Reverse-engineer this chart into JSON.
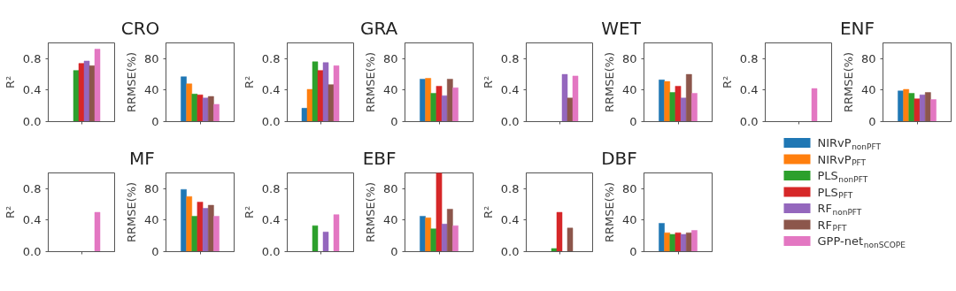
{
  "chart_data": [
    {
      "type": "bar",
      "ylabel": "R²",
      "categories": [
        null
      ],
      "ylim": [
        0,
        1
      ],
      "yticks": [
        {
          "value": 0,
          "label": "0.0"
        },
        {
          "value": 0.4,
          "label": "0.4"
        },
        {
          "value": 0.8,
          "label": "0.8"
        }
      ],
      "tick_labels": "y",
      "grid": false,
      "series": [
        {
          "color": "#1f77b4",
          "values": [
            null
          ]
        },
        {
          "color": "#ff7f0e",
          "values": [
            null
          ]
        },
        {
          "color": "#2ca02c",
          "values": [
            0.65
          ]
        },
        {
          "color": "#d62728",
          "values": [
            0.74
          ]
        },
        {
          "color": "#9467bd",
          "values": [
            0.77
          ]
        },
        {
          "color": "#8c564b",
          "values": [
            0.71
          ]
        },
        {
          "color": "#e377c2",
          "values": [
            0.92
          ]
        }
      ]
    },
    {
      "type": "bar",
      "ylabel": "RRMSE(%)",
      "categories": [
        null
      ],
      "ylim": [
        0,
        100
      ],
      "yticks": [
        0,
        40,
        80
      ],
      "tick_labels": "y",
      "grid": false,
      "title": "CRO",
      "series": [
        {
          "color": "#1f77b4",
          "values": [
            57
          ]
        },
        {
          "color": "#ff7f0e",
          "values": [
            48
          ]
        },
        {
          "color": "#2ca02c",
          "values": [
            35
          ]
        },
        {
          "color": "#d62728",
          "values": [
            34
          ]
        },
        {
          "color": "#9467bd",
          "values": [
            30
          ]
        },
        {
          "color": "#8c564b",
          "values": [
            32
          ]
        },
        {
          "color": "#e377c2",
          "values": [
            22
          ]
        }
      ]
    },
    {
      "type": "bar",
      "ylabel": "R²",
      "categories": [
        null
      ],
      "ylim": [
        0,
        1
      ],
      "yticks": [
        {
          "value": 0,
          "label": "0.0"
        },
        {
          "value": 0.4,
          "label": "0.4"
        },
        {
          "value": 0.8,
          "label": "0.8"
        }
      ],
      "tick_labels": "y",
      "grid": false,
      "series": [
        {
          "color": "#1f77b4",
          "values": [
            0.17
          ]
        },
        {
          "color": "#ff7f0e",
          "values": [
            0.41
          ]
        },
        {
          "color": "#2ca02c",
          "values": [
            0.76
          ]
        },
        {
          "color": "#d62728",
          "values": [
            0.65
          ]
        },
        {
          "color": "#9467bd",
          "values": [
            0.75
          ]
        },
        {
          "color": "#8c564b",
          "values": [
            0.47
          ]
        },
        {
          "color": "#e377c2",
          "values": [
            0.71
          ]
        }
      ]
    },
    {
      "type": "bar",
      "ylabel": "RRMSE(%)",
      "categories": [
        null
      ],
      "ylim": [
        0,
        100
      ],
      "yticks": [
        0,
        40,
        80
      ],
      "tick_labels": "y",
      "grid": false,
      "title": "GRA",
      "series": [
        {
          "color": "#1f77b4",
          "values": [
            54
          ]
        },
        {
          "color": "#ff7f0e",
          "values": [
            55
          ]
        },
        {
          "color": "#2ca02c",
          "values": [
            36
          ]
        },
        {
          "color": "#d62728",
          "values": [
            45
          ]
        },
        {
          "color": "#9467bd",
          "values": [
            33
          ]
        },
        {
          "color": "#8c564b",
          "values": [
            54
          ]
        },
        {
          "color": "#e377c2",
          "values": [
            43
          ]
        }
      ]
    },
    {
      "type": "bar",
      "ylabel": "R²",
      "categories": [
        null
      ],
      "ylim": [
        0,
        1
      ],
      "yticks": [
        {
          "value": 0,
          "label": "0.0"
        },
        {
          "value": 0.4,
          "label": "0.4"
        },
        {
          "value": 0.8,
          "label": "0.8"
        }
      ],
      "tick_labels": "y",
      "grid": false,
      "series": [
        {
          "color": "#1f77b4",
          "values": [
            null
          ]
        },
        {
          "color": "#ff7f0e",
          "values": [
            null
          ]
        },
        {
          "color": "#2ca02c",
          "values": [
            null
          ]
        },
        {
          "color": "#d62728",
          "values": [
            null
          ]
        },
        {
          "color": "#9467bd",
          "values": [
            0.6
          ]
        },
        {
          "color": "#8c564b",
          "values": [
            0.3
          ]
        },
        {
          "color": "#e377c2",
          "values": [
            0.58
          ]
        }
      ]
    },
    {
      "type": "bar",
      "ylabel": "RRMSE(%)",
      "categories": [
        null
      ],
      "ylim": [
        0,
        100
      ],
      "yticks": [
        0,
        40,
        80
      ],
      "tick_labels": "y",
      "grid": false,
      "title": "WET",
      "series": [
        {
          "color": "#1f77b4",
          "values": [
            53
          ]
        },
        {
          "color": "#ff7f0e",
          "values": [
            51
          ]
        },
        {
          "color": "#2ca02c",
          "values": [
            37
          ]
        },
        {
          "color": "#d62728",
          "values": [
            45
          ]
        },
        {
          "color": "#9467bd",
          "values": [
            30
          ]
        },
        {
          "color": "#8c564b",
          "values": [
            60
          ]
        },
        {
          "color": "#e377c2",
          "values": [
            36
          ]
        }
      ]
    },
    {
      "type": "bar",
      "ylabel": "R²",
      "categories": [
        null
      ],
      "ylim": [
        0,
        1
      ],
      "yticks": [
        {
          "value": 0,
          "label": "0.0"
        },
        {
          "value": 0.4,
          "label": "0.4"
        },
        {
          "value": 0.8,
          "label": "0.8"
        }
      ],
      "tick_labels": "y",
      "grid": false,
      "series": [
        {
          "color": "#1f77b4",
          "values": [
            null
          ]
        },
        {
          "color": "#ff7f0e",
          "values": [
            null
          ]
        },
        {
          "color": "#2ca02c",
          "values": [
            null
          ]
        },
        {
          "color": "#d62728",
          "values": [
            null
          ]
        },
        {
          "color": "#9467bd",
          "values": [
            null
          ]
        },
        {
          "color": "#8c564b",
          "values": [
            null
          ]
        },
        {
          "color": "#e377c2",
          "values": [
            0.42
          ]
        }
      ]
    },
    {
      "type": "bar",
      "ylabel": "RRMSE(%)",
      "categories": [
        null
      ],
      "ylim": [
        0,
        100
      ],
      "yticks": [
        0,
        40,
        80
      ],
      "tick_labels": "y",
      "grid": false,
      "title": "ENF",
      "series": [
        {
          "color": "#1f77b4",
          "values": [
            39
          ]
        },
        {
          "color": "#ff7f0e",
          "values": [
            41
          ]
        },
        {
          "color": "#2ca02c",
          "values": [
            36
          ]
        },
        {
          "color": "#d62728",
          "values": [
            29
          ]
        },
        {
          "color": "#9467bd",
          "values": [
            34
          ]
        },
        {
          "color": "#8c564b",
          "values": [
            37
          ]
        },
        {
          "color": "#e377c2",
          "values": [
            28
          ]
        }
      ]
    },
    {
      "type": "bar",
      "ylabel": "R²",
      "categories": [
        null
      ],
      "ylim": [
        0,
        1
      ],
      "yticks": [
        {
          "value": 0,
          "label": "0.0"
        },
        {
          "value": 0.4,
          "label": "0.4"
        },
        {
          "value": 0.8,
          "label": "0.8"
        }
      ],
      "tick_labels": "y",
      "grid": false,
      "series": [
        {
          "color": "#1f77b4",
          "values": [
            null
          ]
        },
        {
          "color": "#ff7f0e",
          "values": [
            null
          ]
        },
        {
          "color": "#2ca02c",
          "values": [
            null
          ]
        },
        {
          "color": "#d62728",
          "values": [
            null
          ]
        },
        {
          "color": "#9467bd",
          "values": [
            null
          ]
        },
        {
          "color": "#8c564b",
          "values": [
            null
          ]
        },
        {
          "color": "#e377c2",
          "values": [
            0.5
          ]
        }
      ]
    },
    {
      "type": "bar",
      "ylabel": "RRMSE(%)",
      "categories": [
        null
      ],
      "ylim": [
        0,
        100
      ],
      "yticks": [
        0,
        40,
        80
      ],
      "tick_labels": "y",
      "grid": false,
      "title": "MF",
      "series": [
        {
          "color": "#1f77b4",
          "values": [
            79
          ]
        },
        {
          "color": "#ff7f0e",
          "values": [
            70
          ]
        },
        {
          "color": "#2ca02c",
          "values": [
            45
          ]
        },
        {
          "color": "#d62728",
          "values": [
            63
          ]
        },
        {
          "color": "#9467bd",
          "values": [
            55
          ]
        },
        {
          "color": "#8c564b",
          "values": [
            59
          ]
        },
        {
          "color": "#e377c2",
          "values": [
            45
          ]
        }
      ]
    },
    {
      "type": "bar",
      "ylabel": "R²",
      "categories": [
        null
      ],
      "ylim": [
        0,
        1
      ],
      "yticks": [
        {
          "value": 0,
          "label": "0.0"
        },
        {
          "value": 0.4,
          "label": "0.4"
        },
        {
          "value": 0.8,
          "label": "0.8"
        }
      ],
      "tick_labels": "y",
      "grid": false,
      "series": [
        {
          "color": "#1f77b4",
          "values": [
            null
          ]
        },
        {
          "color": "#ff7f0e",
          "values": [
            null
          ]
        },
        {
          "color": "#2ca02c",
          "values": [
            0.33
          ]
        },
        {
          "color": "#d62728",
          "values": [
            null
          ]
        },
        {
          "color": "#9467bd",
          "values": [
            0.25
          ]
        },
        {
          "color": "#8c564b",
          "values": [
            null
          ]
        },
        {
          "color": "#e377c2",
          "values": [
            0.47
          ]
        }
      ]
    },
    {
      "type": "bar",
      "ylabel": "RRMSE(%)",
      "categories": [
        null
      ],
      "ylim": [
        0,
        100
      ],
      "yticks": [
        0,
        40,
        80
      ],
      "tick_labels": "y",
      "grid": false,
      "title": "EBF",
      "series": [
        {
          "color": "#1f77b4",
          "values": [
            45
          ]
        },
        {
          "color": "#ff7f0e",
          "values": [
            43
          ]
        },
        {
          "color": "#2ca02c",
          "values": [
            29
          ]
        },
        {
          "color": "#d62728",
          "values": [
            100
          ]
        },
        {
          "color": "#9467bd",
          "values": [
            35
          ]
        },
        {
          "color": "#8c564b",
          "values": [
            54
          ]
        },
        {
          "color": "#e377c2",
          "values": [
            33
          ]
        }
      ]
    },
    {
      "type": "bar",
      "ylabel": "R²",
      "categories": [
        null
      ],
      "ylim": [
        0,
        1
      ],
      "yticks": [
        {
          "value": 0,
          "label": "0.0"
        },
        {
          "value": 0.4,
          "label": "0.4"
        },
        {
          "value": 0.8,
          "label": "0.8"
        }
      ],
      "tick_labels": "y",
      "grid": false,
      "series": [
        {
          "color": "#1f77b4",
          "values": [
            null
          ]
        },
        {
          "color": "#ff7f0e",
          "values": [
            null
          ]
        },
        {
          "color": "#2ca02c",
          "values": [
            0.04
          ]
        },
        {
          "color": "#d62728",
          "values": [
            0.5
          ]
        },
        {
          "color": "#9467bd",
          "values": [
            null
          ]
        },
        {
          "color": "#8c564b",
          "values": [
            0.3
          ]
        },
        {
          "color": "#e377c2",
          "values": [
            null
          ]
        }
      ]
    },
    {
      "type": "bar",
      "ylabel": "RRMSE(%)",
      "categories": [
        null
      ],
      "ylim": [
        0,
        100
      ],
      "yticks": [
        0,
        40,
        80
      ],
      "tick_labels": "y",
      "grid": false,
      "legend": "right",
      "title": "DBF",
      "series": [
        {
          "name": "NIRvP$_{nonPFT}$",
          "color": "#1f77b4",
          "values": [
            36
          ]
        },
        {
          "name": "NIRvP$_{PFT}$",
          "color": "#ff7f0e",
          "values": [
            24
          ]
        },
        {
          "name": "PLS$_{nonPFT}$",
          "color": "#2ca02c",
          "values": [
            22
          ]
        },
        {
          "name": "PLS$_{PFT}$",
          "color": "#d62728",
          "values": [
            24
          ]
        },
        {
          "name": "RF$_{nonPFT}$",
          "color": "#9467bd",
          "values": [
            22
          ]
        },
        {
          "name": "RF$_{PFT}$",
          "color": "#8c564b",
          "values": [
            24
          ]
        },
        {
          "name": "GPP-net$_{nonSCOPE}$",
          "color": "#e377c2",
          "values": [
            27
          ]
        }
      ]
    }
  ]
}
